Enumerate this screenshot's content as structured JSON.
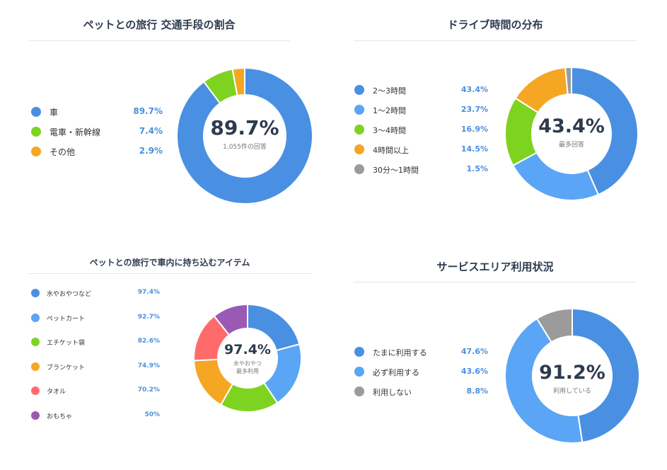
{
  "chart_data": [
    {
      "type": "pie",
      "title": "ペットとの旅行 交通手段の割合",
      "center_value": "89.7%",
      "center_label": "1,055件の回答",
      "legend_position": "left",
      "slices": [
        {
          "label": "車",
          "value": 89.7,
          "display": "89.7%",
          "color": "#4a90e2"
        },
        {
          "label": "電車・新幹線",
          "value": 7.4,
          "display": "7.4%",
          "color": "#7ed321"
        },
        {
          "label": "その他",
          "value": 2.9,
          "display": "2.9%",
          "color": "#f5a623"
        }
      ]
    },
    {
      "type": "pie",
      "title": "ドライブ時間の分布",
      "center_value": "43.4%",
      "center_label": "最多回答",
      "legend_position": "left",
      "slices": [
        {
          "label": "2〜3時間",
          "value": 43.4,
          "display": "43.4%",
          "color": "#4a90e2"
        },
        {
          "label": "1〜2時間",
          "value": 23.7,
          "display": "23.7%",
          "color": "#5aa5f5"
        },
        {
          "label": "3〜4時間",
          "value": 16.9,
          "display": "16.9%",
          "color": "#7ed321"
        },
        {
          "label": "4時間以上",
          "value": 14.5,
          "display": "14.5%",
          "color": "#f5a623"
        },
        {
          "label": "30分〜1時間",
          "value": 1.5,
          "display": "1.5%",
          "color": "#9b9b9b"
        }
      ]
    },
    {
      "type": "pie",
      "title": "ペットとの旅行で車内に持ち込むアイテム",
      "center_value": "97.4%",
      "center_label": "水やおやつ",
      "center_label2": "最多利用",
      "legend_position": "left",
      "slices": [
        {
          "label": "水やおやつなど",
          "value": 97.4,
          "display": "97.4%",
          "color": "#4a90e2"
        },
        {
          "label": "ペットカート",
          "value": 92.7,
          "display": "92.7%",
          "color": "#5aa5f5"
        },
        {
          "label": "エチケット袋",
          "value": 82.6,
          "display": "82.6%",
          "color": "#7ed321"
        },
        {
          "label": "ブランケット",
          "value": 74.9,
          "display": "74.9%",
          "color": "#f5a623"
        },
        {
          "label": "タオル",
          "value": 70.2,
          "display": "70.2%",
          "color": "#ff6b6b"
        },
        {
          "label": "おもちゃ",
          "value": 50,
          "display": "50%",
          "color": "#9b59b6"
        }
      ]
    },
    {
      "type": "pie",
      "title": "サービスエリア利用状況",
      "center_value": "91.2%",
      "center_label": "利用している",
      "legend_position": "left",
      "slices": [
        {
          "label": "たまに利用する",
          "value": 47.6,
          "display": "47.6%",
          "color": "#4a90e2"
        },
        {
          "label": "必ず利用する",
          "value": 43.6,
          "display": "43.6%",
          "color": "#5aa5f5"
        },
        {
          "label": "利用しない",
          "value": 8.8,
          "display": "8.8%",
          "color": "#9b9b9b"
        }
      ]
    }
  ]
}
